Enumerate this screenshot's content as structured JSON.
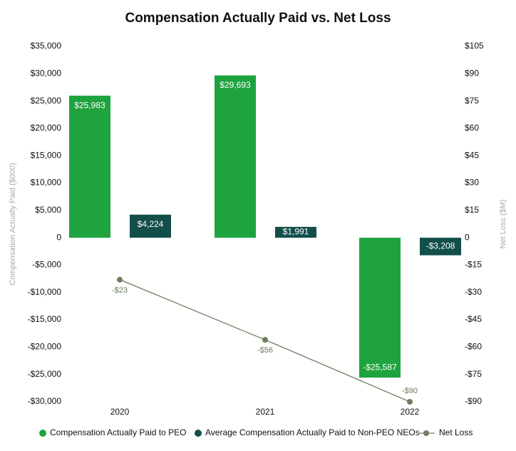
{
  "chart_data": {
    "type": "bar",
    "title": "Compensation Actually Paid vs. Net Loss",
    "ylabel": "Compensation Actually Paid ($000)",
    "y2label": "Net Loss ($M)",
    "categories": [
      "2020",
      "2021",
      "2022"
    ],
    "series": [
      {
        "name": "Compensation Actually Paid to PEO",
        "color": "#1fa33f",
        "values": [
          25983,
          29693,
          -25587
        ],
        "value_labels": [
          "$25,983",
          "$29,693",
          "-$25,587"
        ]
      },
      {
        "name": "Average Compensation Actually Paid to Non-PEO NEOs",
        "color": "#134f4a",
        "values": [
          4224,
          1991,
          -3208
        ],
        "value_labels": [
          "$4,224",
          "$1,991",
          "-$3,208"
        ]
      },
      {
        "name": "Net Loss",
        "type": "line",
        "axis": "y2",
        "color": "#6f7d5f",
        "values": [
          -23,
          -56,
          -90
        ],
        "value_labels": [
          "-$23",
          "-$56",
          "-$90"
        ]
      }
    ],
    "ylim": [
      -30000,
      35000
    ],
    "yticks": [
      {
        "value": -30000,
        "label": "-$30,000"
      },
      {
        "value": -25000,
        "label": "-$25,000"
      },
      {
        "value": -20000,
        "label": "-$20,000"
      },
      {
        "value": -15000,
        "label": "-$15,000"
      },
      {
        "value": -10000,
        "label": "-$10,000"
      },
      {
        "value": -5000,
        "label": "-$5,000"
      },
      0,
      {
        "value": 5000,
        "label": "$5,000"
      },
      {
        "value": 10000,
        "label": "$10,000"
      },
      {
        "value": 15000,
        "label": "$15,000"
      },
      {
        "value": 20000,
        "label": "$20,000"
      },
      {
        "value": 25000,
        "label": "$25,000"
      },
      {
        "value": 30000,
        "label": "$30,000"
      },
      {
        "value": 35000,
        "label": "$35,000"
      }
    ],
    "y2lim": [
      -90,
      105
    ],
    "y2ticks": [
      {
        "value": -90,
        "label": "-$90"
      },
      {
        "value": -75,
        "label": "-$75"
      },
      {
        "value": -60,
        "label": "-$60"
      },
      {
        "value": -45,
        "label": "-$45"
      },
      {
        "value": -30,
        "label": "-$30"
      },
      {
        "value": -15,
        "label": "-$15"
      },
      0,
      {
        "value": 15,
        "label": "$15"
      },
      {
        "value": 30,
        "label": "$30"
      },
      {
        "value": 45,
        "label": "$45"
      },
      {
        "value": 60,
        "label": "$60"
      },
      {
        "value": 75,
        "label": "$75"
      },
      {
        "value": 90,
        "label": "$90"
      },
      {
        "value": 105,
        "label": "$105"
      }
    ],
    "grid": false,
    "legend": "bottom"
  }
}
